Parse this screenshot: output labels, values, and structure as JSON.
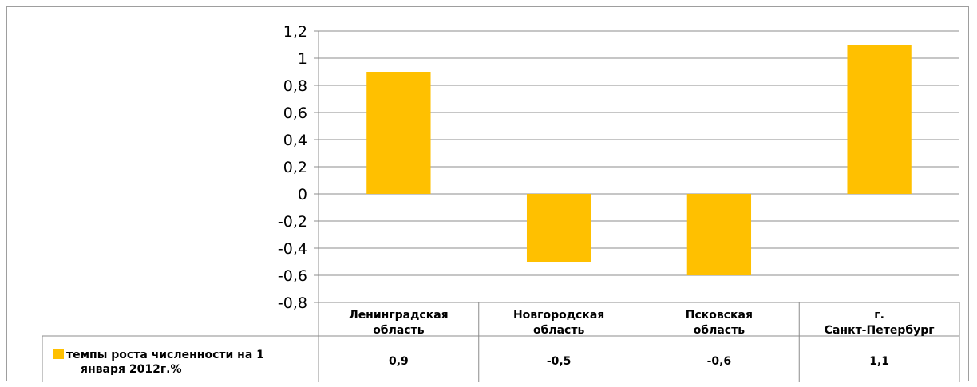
{
  "chart_data": {
    "type": "bar",
    "categories": [
      [
        "Ленинградская",
        "область"
      ],
      [
        "Новгородская",
        "область"
      ],
      [
        "Псковская",
        "область"
      ],
      [
        "г.",
        "Санкт-Петербург"
      ]
    ],
    "series": [
      {
        "name": [
          "темпы роста численности на 1",
          "января 2012г.%"
        ],
        "values": [
          0.9,
          -0.5,
          -0.6,
          1.1
        ],
        "value_labels": [
          "0,9",
          "-0,5",
          "-0,6",
          "1,1"
        ],
        "color": "#FFC000"
      }
    ],
    "ylim": [
      -0.8,
      1.2
    ],
    "yticks": [
      {
        "value": 1.2,
        "label": "1,2"
      },
      {
        "value": 1.0,
        "label": "1"
      },
      {
        "value": 0.8,
        "label": "0,8"
      },
      {
        "value": 0.6,
        "label": "0,6"
      },
      {
        "value": 0.4,
        "label": "0,4"
      },
      {
        "value": 0.2,
        "label": "0,2"
      },
      {
        "value": 0.0,
        "label": "0"
      },
      {
        "value": -0.2,
        "label": "-0,2"
      },
      {
        "value": -0.4,
        "label": "-0,4"
      },
      {
        "value": -0.6,
        "label": "-0,6"
      },
      {
        "value": -0.8,
        "label": "-0,8"
      }
    ],
    "grid": true,
    "legend": "data-table",
    "title": "",
    "xlabel": "",
    "ylabel": ""
  },
  "colors": {
    "bar": "#FFC000",
    "grid": "#8c8c8c",
    "table_border": "#8c8c8c"
  }
}
